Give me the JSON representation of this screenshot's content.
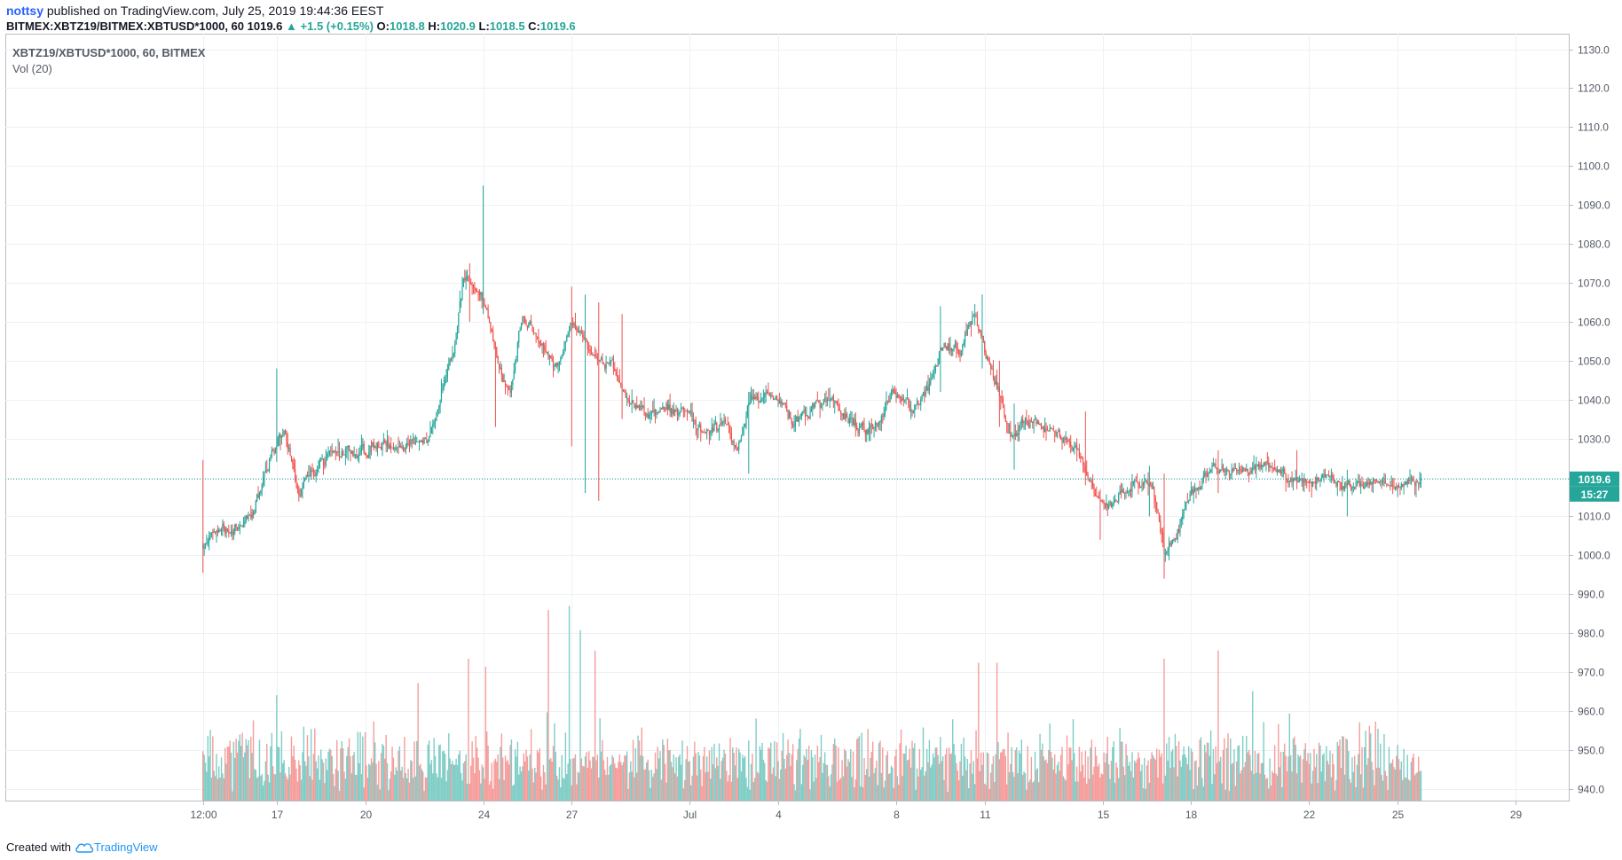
{
  "header": {
    "author": "nottsy",
    "published_text": "published on TradingView.com, July 25, 2019 19:44:36 EEST",
    "symbol_line": "BITMEX:XBTZ19/BITMEX:XBTUSD*1000, 60",
    "last": "1019.6",
    "up_arrow": "▲",
    "change": "+1.5 (+0.15%)",
    "o_label": "O:",
    "o_value": "1018.8",
    "h_label": "H:",
    "h_value": "1020.9",
    "l_label": "L:",
    "l_value": "1018.5",
    "c_label": "C:",
    "c_value": "1019.6"
  },
  "legend": {
    "title": "XBTZ19/XBTUSD*1000, 60, BITMEX",
    "volume": "Vol (20)"
  },
  "price_scale": {
    "last_price_label": "1019.6",
    "countdown_label": "15:27"
  },
  "footer": {
    "created_with": "Created with",
    "brand": "TradingView"
  },
  "colors": {
    "up": "#26a69a",
    "down": "#ef5350",
    "up_volume": "#7fcdc6",
    "down_volume": "#f59d9b",
    "grid": "#eef1f6",
    "axis_text": "#555a66",
    "last_price": "#26a69a"
  },
  "chart_data": {
    "type": "candlestick",
    "title": "XBTZ19/XBTUSD*1000, 60, BITMEX",
    "timeframe": "60",
    "y_ticks": [
      940.0,
      950.0,
      960.0,
      970.0,
      980.0,
      990.0,
      1000.0,
      1010.0,
      1020.0,
      1030.0,
      1040.0,
      1050.0,
      1060.0,
      1070.0,
      1080.0,
      1090.0,
      1100.0,
      1110.0,
      1120.0,
      1130.0
    ],
    "ylim": [
      937.0,
      1134.0
    ],
    "x_ticks": [
      "12:00",
      "17",
      "20",
      "24",
      "27",
      "Jul",
      "4",
      "8",
      "11",
      "15",
      "18",
      "22",
      "25",
      "29"
    ],
    "x_tick_days": [
      14.5,
      17,
      20,
      24,
      27,
      31,
      34,
      38,
      41,
      45,
      48,
      52,
      55,
      59
    ],
    "x_range_days": [
      7.8,
      60.8
    ],
    "last_price": 1019.6,
    "price_path": [
      [
        14.5,
        1003
      ],
      [
        14.9,
        1008
      ],
      [
        15.5,
        1006
      ],
      [
        16.1,
        1010
      ],
      [
        16.5,
        1019
      ],
      [
        16.9,
        1028
      ],
      [
        17.2,
        1033
      ],
      [
        17.7,
        1016
      ],
      [
        18.1,
        1020
      ],
      [
        18.8,
        1027
      ],
      [
        19.7,
        1026
      ],
      [
        20.5,
        1028
      ],
      [
        21.2,
        1028
      ],
      [
        22.1,
        1030
      ],
      [
        22.6,
        1043
      ],
      [
        23.0,
        1054
      ],
      [
        23.3,
        1072
      ],
      [
        23.7,
        1069
      ],
      [
        24.1,
        1062
      ],
      [
        24.5,
        1048
      ],
      [
        24.9,
        1042
      ],
      [
        25.3,
        1062
      ],
      [
        25.9,
        1054
      ],
      [
        26.4,
        1048
      ],
      [
        26.8,
        1055
      ],
      [
        27.0,
        1060
      ],
      [
        27.4,
        1055
      ],
      [
        27.8,
        1050
      ],
      [
        28.4,
        1048
      ],
      [
        28.8,
        1040
      ],
      [
        29.5,
        1036
      ],
      [
        30.2,
        1038
      ],
      [
        30.9,
        1036
      ],
      [
        31.5,
        1031
      ],
      [
        32.2,
        1034
      ],
      [
        32.6,
        1027
      ],
      [
        33.0,
        1040
      ],
      [
        33.8,
        1041
      ],
      [
        34.5,
        1034
      ],
      [
        35.2,
        1038
      ],
      [
        35.8,
        1040
      ],
      [
        36.4,
        1034
      ],
      [
        37.2,
        1032
      ],
      [
        37.8,
        1042
      ],
      [
        38.5,
        1037
      ],
      [
        39.0,
        1042
      ],
      [
        39.5,
        1054
      ],
      [
        40.1,
        1052
      ],
      [
        40.6,
        1062
      ],
      [
        41.0,
        1052
      ],
      [
        41.5,
        1041
      ],
      [
        41.8,
        1030
      ],
      [
        42.3,
        1034
      ],
      [
        42.9,
        1033
      ],
      [
        43.6,
        1030
      ],
      [
        44.1,
        1027
      ],
      [
        44.5,
        1019
      ],
      [
        44.8,
        1014
      ],
      [
        45.3,
        1013
      ],
      [
        46.0,
        1018
      ],
      [
        46.6,
        1019
      ],
      [
        46.8,
        1012
      ],
      [
        47.1,
        1000
      ],
      [
        47.5,
        1005
      ],
      [
        47.8,
        1014
      ],
      [
        48.2,
        1018
      ],
      [
        48.8,
        1022
      ],
      [
        49.6,
        1022
      ],
      [
        50.5,
        1023
      ],
      [
        51.5,
        1019
      ],
      [
        52.5,
        1019
      ],
      [
        53.5,
        1018
      ],
      [
        54.3,
        1019
      ],
      [
        55.0,
        1018
      ],
      [
        55.8,
        1019.6
      ]
    ],
    "spikes": [
      {
        "day": 14.45,
        "high": 1024.5,
        "low": 995.5
      },
      {
        "day": 17.0,
        "high": 1048.0,
        "low": 1024.0
      },
      {
        "day": 23.55,
        "high": 1075.0,
        "low": 1060.0
      },
      {
        "day": 24.0,
        "high": 1095.0,
        "low": 1062.0
      },
      {
        "day": 24.4,
        "high": 1052.0,
        "low": 1033.0
      },
      {
        "day": 27.0,
        "high": 1069.0,
        "low": 1028.0
      },
      {
        "day": 27.45,
        "high": 1067.0,
        "low": 1016.0
      },
      {
        "day": 27.9,
        "high": 1065.0,
        "low": 1014.0
      },
      {
        "day": 28.7,
        "high": 1062.0,
        "low": 1035.0
      },
      {
        "day": 33.0,
        "high": 1042.0,
        "low": 1021.0
      },
      {
        "day": 39.5,
        "high": 1064.0,
        "low": 1042.0
      },
      {
        "day": 40.9,
        "high": 1067.0,
        "low": 1048.0
      },
      {
        "day": 41.5,
        "high": 1050.0,
        "low": 1033.0
      },
      {
        "day": 42.0,
        "high": 1039.0,
        "low": 1022.0
      },
      {
        "day": 44.4,
        "high": 1037.0,
        "low": 1018.0
      },
      {
        "day": 44.9,
        "high": 1017.0,
        "low": 1004.0
      },
      {
        "day": 46.6,
        "high": 1023.0,
        "low": 1010.0
      },
      {
        "day": 47.1,
        "high": 1021.0,
        "low": 994.0
      },
      {
        "day": 48.9,
        "high": 1027.0,
        "low": 1016.0
      },
      {
        "day": 51.6,
        "high": 1027.0,
        "low": 1017.0
      },
      {
        "day": 53.3,
        "high": 1022.0,
        "low": 1010.0
      }
    ],
    "volume_spikes": [
      {
        "day": 17.0,
        "value": 26
      },
      {
        "day": 21.8,
        "value": 29
      },
      {
        "day": 23.5,
        "value": 35
      },
      {
        "day": 24.1,
        "value": 33
      },
      {
        "day": 26.2,
        "value": 47
      },
      {
        "day": 26.9,
        "value": 48
      },
      {
        "day": 27.3,
        "value": 42
      },
      {
        "day": 27.8,
        "value": 37
      },
      {
        "day": 40.8,
        "value": 34
      },
      {
        "day": 41.4,
        "value": 34
      },
      {
        "day": 47.1,
        "value": 35
      },
      {
        "day": 48.9,
        "value": 37
      },
      {
        "day": 50.1,
        "value": 27
      }
    ],
    "volume_region_prices": [
      940,
      990
    ],
    "volume_max": 48
  }
}
